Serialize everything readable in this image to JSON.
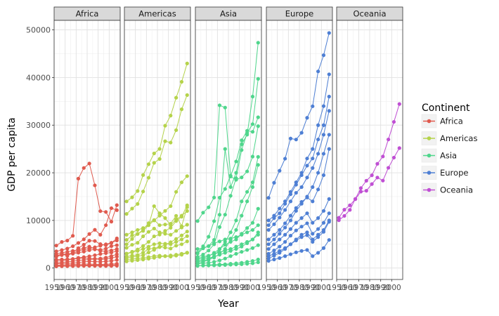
{
  "chart_data": {
    "type": "line",
    "facet_by": "continent",
    "xlabel": "Year",
    "ylabel": "GDP per capita",
    "x_ticks": [
      1950,
      1960,
      1970,
      1980,
      1990,
      2000
    ],
    "x_tick_labels": [
      "1950",
      "1960",
      "1970",
      "1980",
      "1990",
      "2000"
    ],
    "y_ticks": [
      0,
      10000,
      20000,
      30000,
      40000,
      50000
    ],
    "y_tick_labels": [
      "0",
      "10000",
      "20000",
      "30000",
      "40000",
      "50000"
    ],
    "xlim": [
      1950,
      2010
    ],
    "ylim": [
      -2400,
      52000
    ],
    "grid": true,
    "legend": {
      "title": "Continent",
      "position": "right"
    },
    "years": [
      1952,
      1957,
      1962,
      1967,
      1972,
      1977,
      1982,
      1987,
      1992,
      1997,
      2002,
      2007
    ],
    "panels": [
      {
        "name": "Africa",
        "color": "#e05a4e",
        "lines": [
          [
            4725,
            5487,
            5768,
            6770,
            18772,
            21011,
            21951,
            17364,
            11948,
            11781,
            9745,
            13206
          ],
          [
            2449,
            3014,
            2550,
            3247,
            4183,
            4910,
            5745,
            5681,
            5023,
            4797,
            5288,
            6223
          ],
          [
            2669,
            2864,
            3021,
            3021,
            3218,
            3449,
            3749,
            3912,
            3833,
            4059,
            4604,
            4798
          ],
          [
            1777,
            1812,
            1836,
            1915,
            2150,
            2300,
            2467,
            2691,
            2949,
            3121,
            3267,
            3566
          ],
          [
            3522,
            3780,
            4086,
            4579,
            5269,
            6035,
            7148,
            8029,
            7000,
            9000,
            12570,
            12154
          ],
          [
            2385,
            2720,
            2886,
            3163,
            3559,
            3891,
            4080,
            4376,
            4690,
            5000,
            5300,
            5800
          ],
          [
            1100,
            1200,
            1300,
            1450,
            1600,
            1700,
            1800,
            1900,
            2000,
            2200,
            2500,
            2900
          ],
          [
            600,
            650,
            700,
            760,
            800,
            850,
            820,
            780,
            760,
            800,
            850,
            900
          ],
          [
            450,
            480,
            500,
            520,
            560,
            600,
            620,
            610,
            590,
            620,
            660,
            700
          ],
          [
            350,
            380,
            400,
            420,
            440,
            460,
            470,
            460,
            450,
            440,
            460,
            480
          ],
          [
            1500,
            1600,
            1700,
            1850,
            2000,
            2100,
            2050,
            1950,
            1800,
            1900,
            2100,
            2400
          ],
          [
            900,
            950,
            1000,
            1050,
            1150,
            1300,
            1400,
            1350,
            1300,
            1400,
            1500,
            1700
          ],
          [
            3000,
            3200,
            3400,
            3600,
            3800,
            4200,
            4500,
            4000,
            3600,
            3500,
            3700,
            4000
          ]
        ]
      },
      {
        "name": "Americas",
        "color": "#b5d34a",
        "lines": [
          [
            13990,
            14847,
            16173,
            19530,
            21806,
            24073,
            25009,
            29884,
            32004,
            35767,
            39097,
            42952
          ],
          [
            11367,
            12490,
            13462,
            16077,
            18971,
            22091,
            22899,
            26627,
            26343,
            28955,
            33329,
            36319
          ],
          [
            5911,
            6857,
            7133,
            8053,
            9443,
            10079,
            8998,
            9140,
            9308,
            10967,
            8798,
            12779
          ],
          [
            3048,
            3422,
            3914,
            4647,
            5493,
            6660,
            7031,
            7807,
            8447,
            9875,
            10779,
            13172
          ],
          [
            5000,
            6100,
            7200,
            7800,
            9000,
            13000,
            11500,
            10500,
            9000,
            10200,
            11000,
            11977
          ],
          [
            2144,
            2323,
            2492,
            2678,
            3265,
            3815,
            4398,
            4903,
            5444,
            6118,
            6853,
            7670
          ],
          [
            1397,
            1544,
            1662,
            1786,
            1970,
            2150,
            2350,
            2500,
            2650,
            2800,
            3000,
            3250
          ],
          [
            4245,
            4886,
            5302,
            6662,
            7600,
            8300,
            7500,
            7200,
            7000,
            7800,
            8500,
            9100
          ],
          [
            2428,
            2617,
            2750,
            3242,
            4031,
            4129,
            4470,
            4300,
            4100,
            4700,
            5000,
            5600
          ],
          [
            1800,
            1900,
            2000,
            2100,
            2300,
            2500,
            2600,
            2500,
            2400,
            2600,
            2800,
            3200
          ],
          [
            3000,
            3300,
            3600,
            4000,
            4500,
            5000,
            5200,
            5100,
            5000,
            5500,
            6000,
            6700
          ],
          [
            7000,
            7500,
            8000,
            8400,
            9000,
            10000,
            11000,
            12000,
            13000,
            16000,
            18000,
            19300
          ]
        ]
      },
      {
        "name": "Asia",
        "color": "#4fd68c",
        "lines": [
          [
            9867,
            11636,
            12753,
            14805,
            34168,
            33693,
            19211,
            18525,
            19035,
            20292,
            23403,
            29796
          ],
          [
            3054,
            4131,
            4606,
            5910,
            11200,
            25000,
            17000,
            20000,
            26000,
            28000,
            36000,
            47307
          ],
          [
            3217,
            4574,
            6576,
            9847,
            14778,
            16610,
            19384,
            22376,
            26825,
            28817,
            28605,
            31656
          ],
          [
            2315,
            2843,
            3675,
            4977,
            8597,
            11210,
            15169,
            18861,
            24769,
            28377,
            30209,
            39725
          ],
          [
            1000,
            1300,
            1700,
            2500,
            4000,
            5500,
            7500,
            10000,
            14000,
            16000,
            18000,
            23348
          ],
          [
            1300,
            1500,
            1800,
            2200,
            3000,
            4000,
            6000,
            8000,
            11000,
            14000,
            17000,
            21654
          ],
          [
            1830,
            2050,
            2500,
            3200,
            4000,
            4900,
            5500,
            6000,
            7200,
            8400,
            9500,
            12452
          ],
          [
            900,
            1000,
            1100,
            1300,
            1600,
            2000,
            2500,
            3000,
            3400,
            3800,
            4200,
            4800
          ],
          [
            450,
            550,
            650,
            700,
            750,
            800,
            900,
            1000,
            1100,
            1300,
            1500,
            1800
          ],
          [
            500,
            520,
            540,
            560,
            600,
            640,
            700,
            750,
            800,
            900,
            1000,
            1200
          ],
          [
            4000,
            4200,
            4600,
            5200,
            5600,
            6000,
            6200,
            6500,
            7000,
            7500,
            8000,
            9000
          ],
          [
            2000,
            2400,
            2600,
            3000,
            3300,
            3700,
            4000,
            4500,
            5000,
            5500,
            6000,
            7500
          ],
          [
            1500,
            1800,
            2100,
            2400,
            2800,
            3200,
            3600,
            4000,
            4500,
            5200,
            6000,
            7000
          ]
        ]
      },
      {
        "name": "Europe",
        "color": "#4e7fd4",
        "lines": [
          [
            14734,
            17909,
            20431,
            22966,
            27195,
            26982,
            28398,
            31541,
            33965,
            41283,
            44684,
            49357
          ],
          [
            10000,
            11000,
            12500,
            14000,
            16000,
            18000,
            20000,
            23000,
            25000,
            30000,
            34000,
            40676
          ],
          [
            9000,
            10500,
            11500,
            13500,
            15500,
            17500,
            19500,
            21500,
            23000,
            27000,
            30000,
            36000
          ],
          [
            8000,
            9200,
            10600,
            12200,
            14000,
            15800,
            17000,
            19000,
            21000,
            24000,
            28000,
            33000
          ],
          [
            5000,
            6000,
            7200,
            8500,
            10000,
            12000,
            13500,
            15000,
            17000,
            20000,
            24000,
            28000
          ],
          [
            4000,
            5000,
            6000,
            7000,
            8200,
            9500,
            10500,
            11500,
            9500,
            10500,
            12000,
            14500
          ],
          [
            3000,
            3700,
            4500,
            5500,
            6800,
            7900,
            8700,
            9400,
            7200,
            8200,
            9500,
            11500
          ],
          [
            2500,
            3000,
            3600,
            4200,
            5000,
            5800,
            6500,
            6900,
            5500,
            6500,
            7600,
            9700
          ],
          [
            1500,
            1800,
            2100,
            2500,
            2900,
            3300,
            3600,
            3800,
            2500,
            3200,
            4200,
            5900
          ],
          [
            6000,
            7000,
            8000,
            9400,
            11000,
            12600,
            13900,
            14800,
            14000,
            16500,
            19500,
            25000
          ],
          [
            2000,
            2600,
            3200,
            4000,
            5000,
            6000,
            7000,
            7500,
            6000,
            7000,
            8000,
            10000
          ]
        ]
      },
      {
        "name": "Oceania",
        "color": "#c04fd4",
        "lines": [
          [
            10040,
            10950,
            12217,
            14526,
            16789,
            18334,
            19477,
            21889,
            23425,
            26998,
            30688,
            34435
          ],
          [
            10557,
            12247,
            13176,
            14464,
            16046,
            16234,
            17632,
            19007,
            18363,
            21050,
            23190,
            25185
          ]
        ]
      }
    ]
  }
}
